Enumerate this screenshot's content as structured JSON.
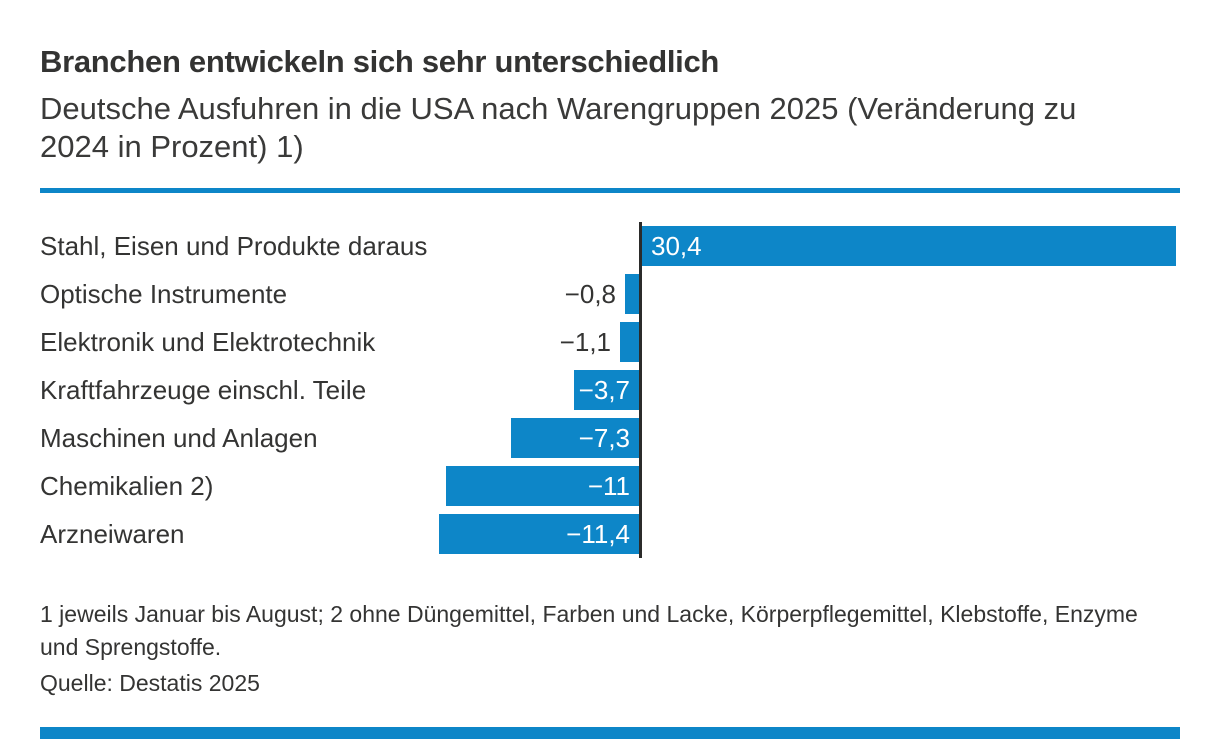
{
  "header": {
    "title": "Branchen entwickeln sich sehr unterschiedlich",
    "subtitle_lines": [
      "Deutsche Ausfuhren in die USA nach Warengruppen 2025 (Veränderung zu",
      "2024 in Prozent) 1)"
    ]
  },
  "chart_data": {
    "type": "bar",
    "orientation": "horizontal",
    "title": "Branchen entwickeln sich sehr unterschiedlich",
    "subtitle": "Deutsche Ausfuhren in die USA nach Warengruppen 2025 (Veränderung zu 2024 in Prozent) 1)",
    "unit": "percent",
    "categories": [
      "Stahl, Eisen und Produkte daraus",
      "Optische Instrumente",
      "Elektronik und Elektrotechnik",
      "Kraftfahrzeuge einschl. Teile",
      "Maschinen und Anlagen",
      "Chemikalien 2)",
      "Arzneiwaren"
    ],
    "values": [
      30.4,
      -0.8,
      -1.1,
      -3.7,
      -7.3,
      -11,
      -11.4
    ],
    "value_labels": [
      "30,4",
      "−0,8",
      "−1,1",
      "−3,7",
      "−7,3",
      "−11",
      "−11,4"
    ],
    "xlim": [
      -11.4,
      30.4
    ],
    "grid": false,
    "legend": false,
    "bar_color": "#0d86c8",
    "axis_color": "#2b2b2a"
  },
  "footer": {
    "footnote": "1 jeweils Januar bis August; 2 ohne Düngemittel, Farben und Lacke, Körperpflegemittel, Klebstoffe, Enzyme und Sprengstoffe.",
    "source": "Quelle: Destatis 2025"
  },
  "colors": {
    "accent_blue": "#0d86c8",
    "axis": "#2b2b2a",
    "text": "#343433"
  }
}
